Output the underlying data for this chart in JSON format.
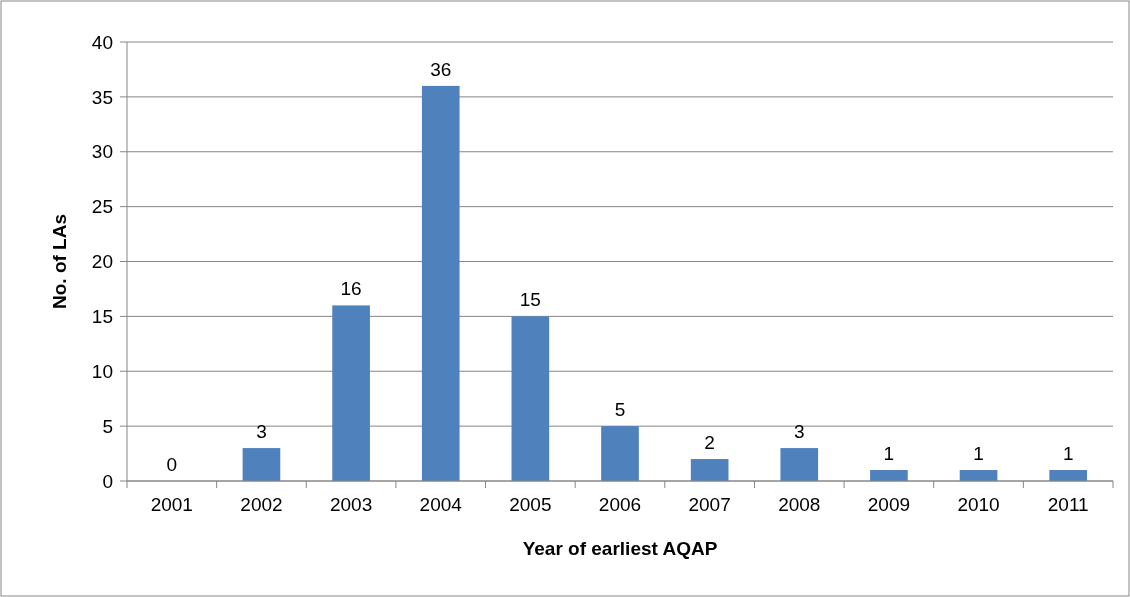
{
  "chart_data": {
    "type": "bar",
    "xlabel": "Year of earliest AQAP",
    "ylabel": "No. of LAs",
    "categories": [
      "2001",
      "2002",
      "2003",
      "2004",
      "2005",
      "2006",
      "2007",
      "2008",
      "2009",
      "2010",
      "2011"
    ],
    "values": [
      0,
      3,
      16,
      36,
      15,
      5,
      2,
      3,
      1,
      1,
      1
    ],
    "color": "#4f81bd",
    "ylim": [
      0,
      40
    ],
    "yticks": [
      0,
      5,
      10,
      15,
      20,
      25,
      30,
      35,
      40
    ],
    "grid": "y",
    "data_labels": true
  }
}
